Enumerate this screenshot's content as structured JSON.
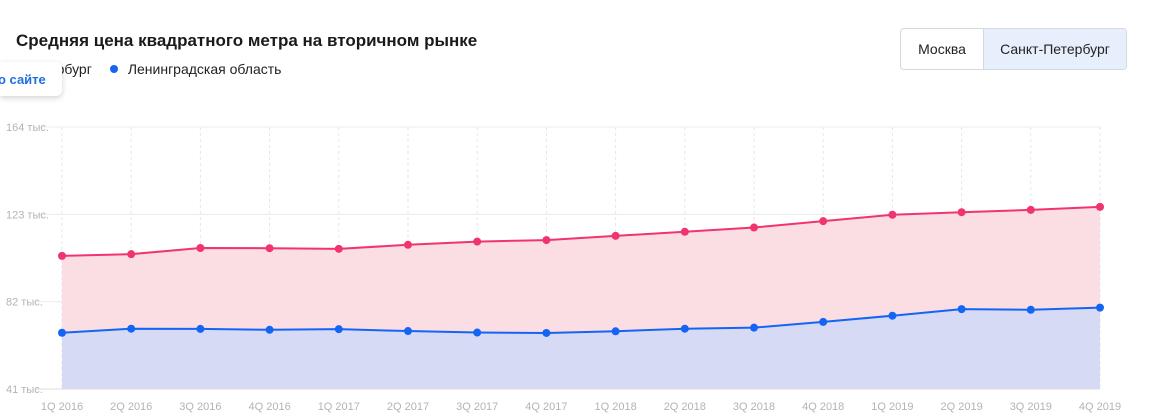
{
  "header": {
    "title": "Средняя цена квадратного метра на вторичном рынке",
    "about_tab": "о сайте"
  },
  "toggle": {
    "options": [
      "Москва",
      "Санкт-Петербург"
    ],
    "selected": "Санкт-Петербург"
  },
  "legend": [
    {
      "label": "Санкт-Петербург",
      "color": "#f0356e"
    },
    {
      "label": "Ленинградская область",
      "color": "#1565f4"
    }
  ],
  "chart_data": {
    "type": "area",
    "title": "Средняя цена квадратного метра на вторичном рынке",
    "categories": [
      "1Q 2016",
      "2Q 2016",
      "3Q 2016",
      "4Q 2016",
      "1Q 2017",
      "2Q 2017",
      "3Q 2017",
      "4Q 2017",
      "1Q 2018",
      "2Q 2018",
      "3Q 2018",
      "4Q 2018",
      "1Q 2019",
      "2Q 2019",
      "3Q 2019",
      "4Q 2019"
    ],
    "y_ticks": [
      "164 тыс.",
      "123 тыс.",
      "82 тыс.",
      "41 тыс."
    ],
    "ylim": [
      41,
      164
    ],
    "grid": true,
    "series": [
      {
        "name": "Санкт-Петербург",
        "color": "#f0356e",
        "fill": "#fbdde4",
        "values": [
          103.5,
          104.3,
          107.2,
          107.1,
          106.8,
          108.7,
          110.2,
          110.9,
          112.9,
          114.8,
          116.8,
          119.8,
          122.8,
          124.0,
          125.1,
          126.5
        ]
      },
      {
        "name": "Ленинградская область",
        "color": "#1565f4",
        "fill": "#d6daf4",
        "values": [
          67.4,
          69.3,
          69.2,
          68.8,
          69.1,
          68.2,
          67.5,
          67.3,
          68.1,
          69.3,
          69.8,
          72.5,
          75.4,
          78.5,
          78.2,
          79.2
        ]
      }
    ]
  }
}
